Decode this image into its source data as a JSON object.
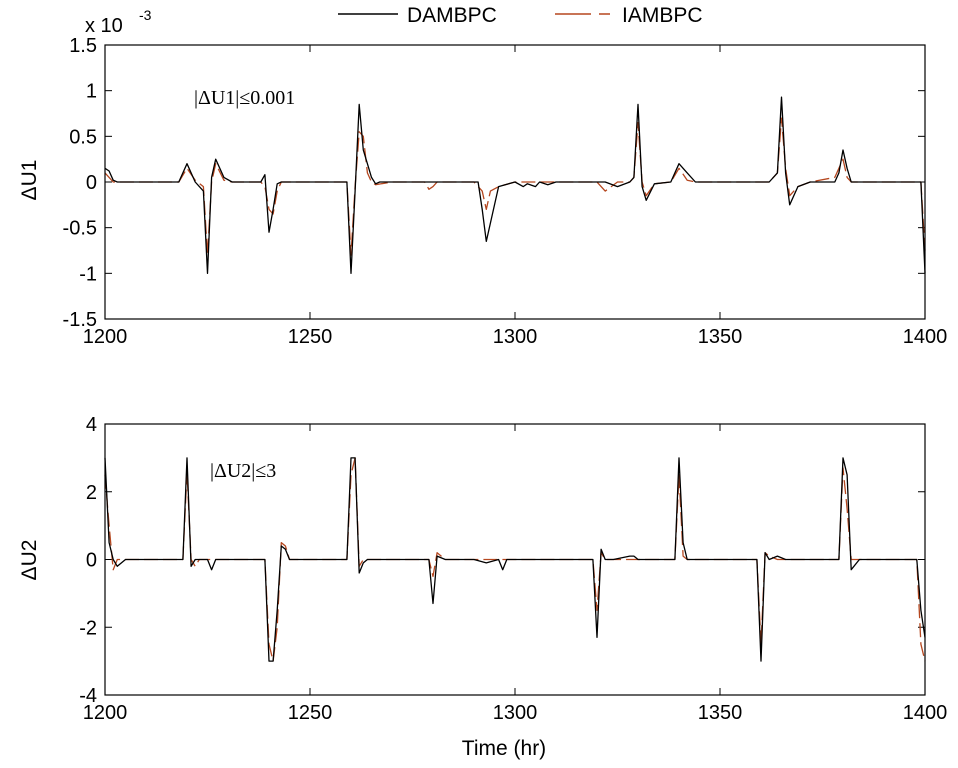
{
  "legend": {
    "placement": "top-center",
    "entries": [
      {
        "name": "DAMBPC",
        "color": "#000000",
        "dash": "solid"
      },
      {
        "name": "IAMBPC",
        "color": "#b5471f",
        "dash": "dashed"
      }
    ]
  },
  "chart_data": [
    {
      "type": "line",
      "xlabel": "",
      "ylabel": "ΔU1",
      "exponent_label": "x 10",
      "exponent_power": "-3",
      "annotation": "|ΔU1|≤0.001",
      "xlim": [
        1200,
        1400
      ],
      "ylim": [
        -1.5,
        1.5
      ],
      "xticks": [
        1200,
        1250,
        1300,
        1350,
        1400
      ],
      "yticks": [
        -1.5,
        -1,
        -0.5,
        0,
        0.5,
        1,
        1.5
      ],
      "xtick_labels": [
        "1200",
        "1250",
        "1300",
        "1350",
        "1400"
      ],
      "ytick_labels": [
        "-1.5",
        "-1",
        "-0.5",
        "0",
        "0.5",
        "1",
        "1.5"
      ],
      "grid": false,
      "series": [
        {
          "name": "DAMBPC",
          "color": "#000000",
          "x": [
            1200,
            1201,
            1202,
            1203,
            1205,
            1218,
            1220,
            1222,
            1224,
            1225,
            1226,
            1227,
            1229,
            1231,
            1238,
            1239,
            1240,
            1241,
            1242,
            1243,
            1245,
            1259,
            1260,
            1261,
            1262,
            1263,
            1264,
            1265,
            1266,
            1267,
            1270,
            1280,
            1281,
            1290,
            1291,
            1292,
            1293,
            1294,
            1296,
            1300,
            1302,
            1303,
            1305,
            1306,
            1308,
            1310,
            1320,
            1322,
            1325,
            1328,
            1329,
            1330,
            1331,
            1332,
            1334,
            1338,
            1340,
            1342,
            1344,
            1346,
            1362,
            1364,
            1365,
            1366,
            1367,
            1369,
            1372,
            1375,
            1378,
            1379,
            1380,
            1381,
            1382,
            1384,
            1386,
            1389,
            1392,
            1399,
            1400
          ],
          "values": [
            0.15,
            0.12,
            0.02,
            0,
            0,
            0,
            0.2,
            0,
            -0.1,
            -1.0,
            0.05,
            0.25,
            0.05,
            0,
            0,
            0.08,
            -0.55,
            -0.3,
            -0.02,
            0,
            0,
            0,
            -1.0,
            -0.1,
            0.85,
            0.35,
            0.2,
            0.05,
            -0.02,
            0,
            0,
            0,
            0,
            0,
            0,
            -0.3,
            -0.65,
            -0.45,
            -0.05,
            0,
            -0.05,
            -0.02,
            -0.05,
            0,
            -0.03,
            0,
            0,
            0,
            -0.05,
            0,
            0.05,
            0.85,
            -0.05,
            -0.2,
            -0.02,
            0,
            0.2,
            0.1,
            0,
            0,
            0,
            0.1,
            0.93,
            0.1,
            -0.25,
            -0.05,
            0,
            0,
            0,
            0.1,
            0.35,
            0.15,
            0,
            0,
            0,
            0,
            0,
            0,
            -1.0
          ]
        },
        {
          "name": "IAMBPC",
          "color": "#b5471f",
          "x": [
            1200,
            1201,
            1202,
            1203,
            1205,
            1218,
            1220,
            1222,
            1224,
            1225,
            1226,
            1227,
            1229,
            1231,
            1238,
            1239,
            1240,
            1241,
            1242,
            1243,
            1245,
            1259,
            1260,
            1261,
            1262,
            1263,
            1264,
            1265,
            1266,
            1270,
            1278,
            1279,
            1280,
            1281,
            1290,
            1292,
            1293,
            1294,
            1296,
            1300,
            1320,
            1322,
            1325,
            1328,
            1329,
            1330,
            1331,
            1332,
            1334,
            1338,
            1340,
            1342,
            1344,
            1362,
            1364,
            1365,
            1366,
            1367,
            1369,
            1372,
            1378,
            1379,
            1380,
            1381,
            1382,
            1384,
            1399,
            1400
          ],
          "values": [
            0.1,
            0.05,
            0,
            0,
            0,
            0,
            0.15,
            0.02,
            -0.05,
            -0.8,
            0,
            0.2,
            0.02,
            0,
            0,
            -0.05,
            -0.3,
            -0.35,
            -0.1,
            0,
            0,
            0,
            -0.8,
            -0.05,
            0.55,
            0.5,
            0.1,
            0,
            -0.03,
            0,
            0,
            -0.08,
            -0.05,
            0,
            0,
            -0.1,
            -0.3,
            -0.1,
            -0.05,
            0,
            0,
            -0.1,
            0,
            0,
            0.05,
            0.65,
            0,
            -0.15,
            -0.02,
            0,
            0.15,
            0.02,
            0,
            0,
            0.1,
            0.7,
            0.15,
            -0.15,
            -0.05,
            0,
            0.05,
            0.15,
            0.25,
            0.05,
            0,
            0,
            0,
            -0.75
          ]
        }
      ]
    },
    {
      "type": "line",
      "xlabel": "Time (hr)",
      "ylabel": "ΔU2",
      "annotation": "|ΔU2|≤3",
      "xlim": [
        1200,
        1400
      ],
      "ylim": [
        -4,
        4
      ],
      "xticks": [
        1200,
        1250,
        1300,
        1350,
        1400
      ],
      "yticks": [
        -4,
        -2,
        0,
        2,
        4
      ],
      "xtick_labels": [
        "1200",
        "1250",
        "1300",
        "1350",
        "1400"
      ],
      "ytick_labels": [
        "-4",
        "-2",
        "0",
        "2",
        "4"
      ],
      "grid": false,
      "series": [
        {
          "name": "DAMBPC",
          "color": "#000000",
          "x": [
            1200,
            1201,
            1202,
            1203,
            1205,
            1219,
            1220,
            1221,
            1222,
            1223,
            1225,
            1226,
            1227,
            1229,
            1230,
            1239,
            1240,
            1241,
            1242,
            1243,
            1244,
            1245,
            1259,
            1260,
            1261,
            1262,
            1263,
            1264,
            1265,
            1266,
            1279,
            1280,
            1281,
            1283,
            1290,
            1293,
            1296,
            1297,
            1298,
            1319,
            1320,
            1321,
            1322,
            1324,
            1328,
            1329,
            1330,
            1339,
            1340,
            1341,
            1342,
            1344,
            1359,
            1360,
            1361,
            1362,
            1364,
            1366,
            1379,
            1380,
            1381,
            1382,
            1384,
            1398,
            1399,
            1400
          ],
          "values": [
            3,
            0.5,
            0,
            -0.2,
            0,
            0,
            3,
            -0.2,
            0,
            0,
            0,
            -0.3,
            0,
            0,
            0,
            0,
            -3,
            -3,
            -1.5,
            0.4,
            0.3,
            0,
            0,
            3,
            3,
            -0.4,
            -0.1,
            0,
            0,
            0,
            0,
            -1.3,
            0.1,
            0,
            0,
            -0.1,
            0,
            -0.3,
            0,
            0,
            -2.3,
            0.3,
            0,
            0,
            0.1,
            0.1,
            0,
            0,
            3,
            0.5,
            0,
            0,
            0,
            -3,
            0.2,
            0,
            0.1,
            0,
            0,
            3,
            2.5,
            -0.3,
            0,
            0,
            -1.5,
            -2.3
          ]
        },
        {
          "name": "IAMBPC",
          "color": "#b5471f",
          "x": [
            1200,
            1201,
            1202,
            1203,
            1205,
            1219,
            1220,
            1221,
            1222,
            1223,
            1225,
            1226,
            1227,
            1229,
            1239,
            1240,
            1241,
            1242,
            1243,
            1244,
            1245,
            1259,
            1260,
            1261,
            1262,
            1263,
            1264,
            1265,
            1279,
            1280,
            1281,
            1283,
            1290,
            1293,
            1296,
            1319,
            1320,
            1321,
            1322,
            1324,
            1339,
            1340,
            1341,
            1342,
            1344,
            1359,
            1360,
            1361,
            1362,
            1364,
            1379,
            1380,
            1381,
            1382,
            1384,
            1398,
            1399,
            1400
          ],
          "values": [
            2.5,
            1.0,
            -0.3,
            0,
            0,
            0,
            2.6,
            0,
            -0.2,
            0,
            0,
            0,
            0,
            0,
            0,
            -2.5,
            -3,
            -2,
            0.5,
            0.4,
            0,
            0,
            2.5,
            3,
            -0.2,
            0,
            0,
            0,
            0,
            -0.5,
            0.2,
            0,
            0,
            0,
            0,
            0,
            -1.5,
            0.2,
            0,
            0,
            0,
            2.5,
            0.1,
            0,
            0,
            0,
            -2.5,
            0.2,
            0.1,
            0,
            0,
            2.7,
            1.5,
            0,
            0,
            0,
            -2.5,
            -3
          ]
        }
      ]
    }
  ]
}
